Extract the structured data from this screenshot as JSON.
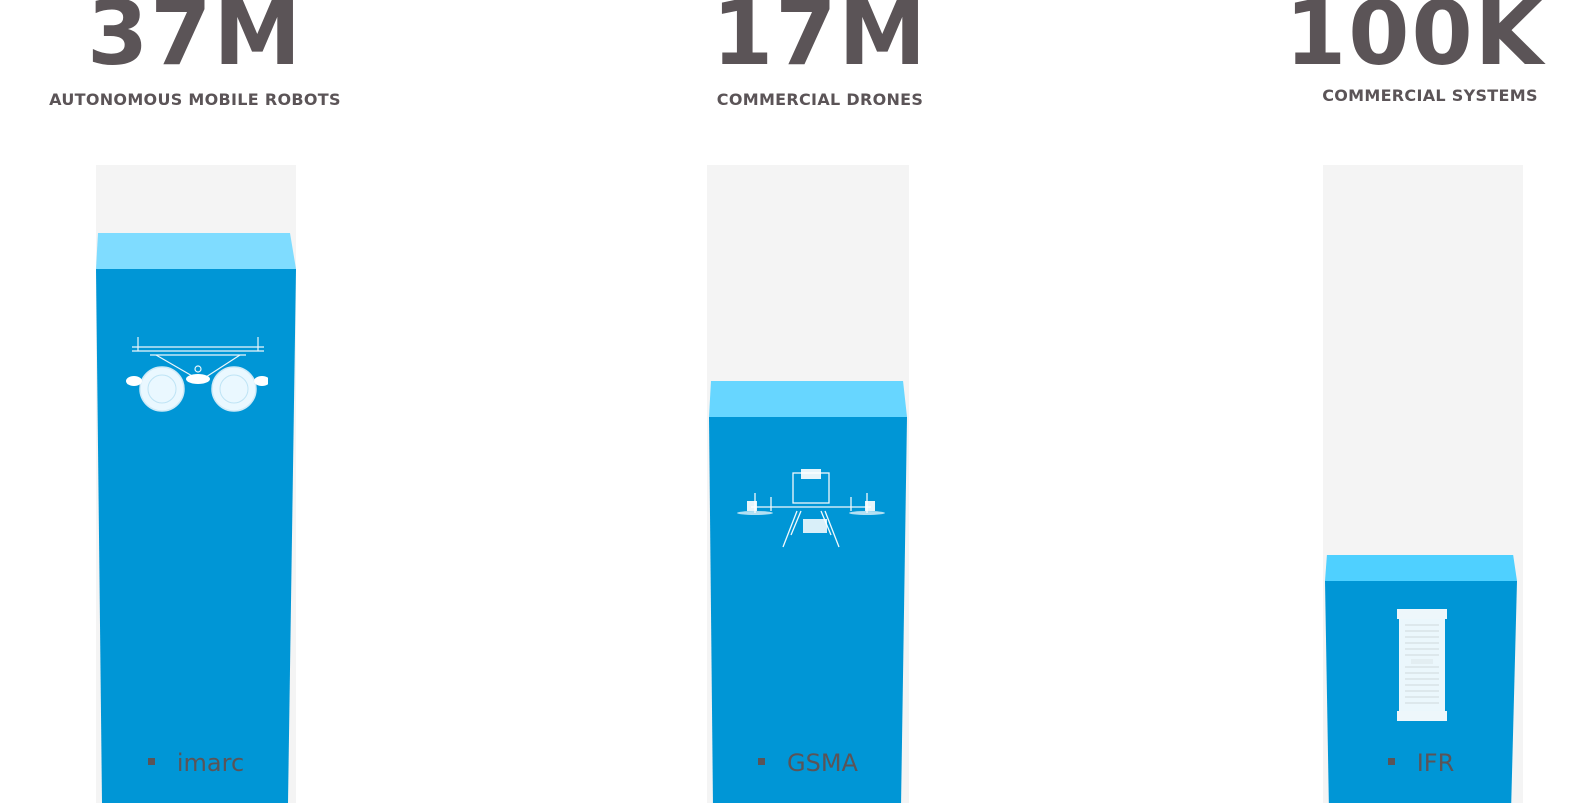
{
  "stats": [
    {
      "value": "37M",
      "label": "AUTONOMOUS MOBILE ROBOTS",
      "source": "imarc",
      "icon": "wheeled-robot-icon",
      "level": 0.89
    },
    {
      "value": "17M",
      "label": "COMMERCIAL DRONES",
      "source": "GSMA",
      "icon": "drone-icon",
      "level": 0.65
    },
    {
      "value": "100K",
      "label": "COMMERCIAL SYSTEMS",
      "source": "IFR",
      "icon": "device-module-icon",
      "level": 0.38
    }
  ],
  "colors": {
    "text": "#5b5457",
    "bar": "#0096d6",
    "bar_top": "#7fdcff",
    "track": "#f4f4f4"
  }
}
